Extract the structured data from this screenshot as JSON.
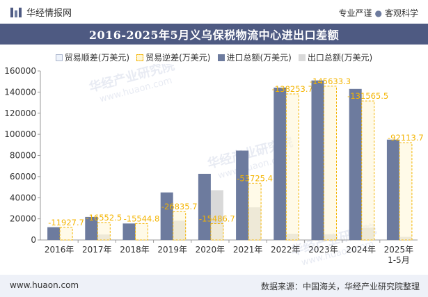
{
  "header": {
    "brand": "华经情报网",
    "slogan_left": "专业严谨",
    "slogan_right": "客观科学"
  },
  "watermarks": [
    "华经产业研究院",
    "www.huaon.com"
  ],
  "colors": {
    "title_bg": "#4e5a82",
    "import_bar": "#6d7b9e",
    "export_bar": "#d9d9d9",
    "deficit_bar": "#fff6d6",
    "deficit_border": "#f4b400",
    "deficit_label": "#f4b400"
  },
  "footer": {
    "url": "www.huaon.com",
    "source": "数据来源：中国海关，华经产业研究院整理"
  },
  "chart_data": {
    "type": "bar",
    "title": "2016-2025年5月义乌保税物流中心进出口差额",
    "categories": [
      "2016年",
      "2017年",
      "2018年",
      "2019年",
      "2020年",
      "2021年",
      "2022年",
      "2023年",
      "2024年",
      "2025年\n1-5月"
    ],
    "series": [
      {
        "name": "贸易顺差(万美元)",
        "values": [
          0,
          0,
          0,
          0,
          0,
          0,
          0,
          0,
          0,
          0
        ]
      },
      {
        "name": "贸易逆差(万美元)",
        "values": [
          -11927.7,
          -16552.5,
          -15544.8,
          -26835.7,
          -15486.7,
          -53725.4,
          -138253.7,
          -145633.3,
          -131565.5,
          -92113.7
        ],
        "labels": [
          "-11927.7",
          "-16552.5",
          "-15544.8",
          "-26835.7",
          "-15486.7",
          "-53725.4",
          "-138253.7",
          "-145633.3",
          "-131565.5",
          "-92113.7"
        ]
      },
      {
        "name": "进口总额(万美元)",
        "values": [
          12100,
          21800,
          15600,
          45000,
          62600,
          84600,
          144200,
          151000,
          143000,
          95000
        ]
      },
      {
        "name": "出口总额(万美元)",
        "values": [
          200,
          5200,
          100,
          18200,
          47100,
          30900,
          5900,
          5400,
          11400,
          2900
        ]
      }
    ],
    "y_ticks": [
      "0",
      "20000",
      "40000",
      "60000",
      "80000",
      "100000",
      "120000",
      "140000",
      "160000"
    ],
    "ylim": [
      0,
      160000
    ],
    "xlabel": "",
    "ylabel": "",
    "grid": false,
    "legend_position": "top"
  }
}
